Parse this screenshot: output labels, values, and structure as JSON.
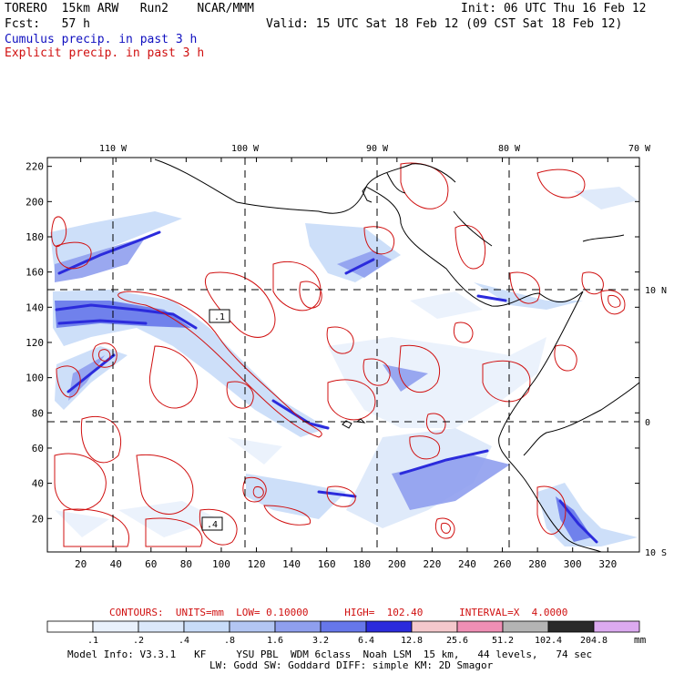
{
  "header": {
    "model": "TORERO  15km ARW   Run2    NCAR/MMM",
    "init": "Init: 06 UTC Thu 16 Feb 12",
    "fcst": "Fcst:   57 h",
    "valid": "Valid: 15 UTC Sat 18 Feb 12 (09 CST Sat 18 Feb 12)",
    "field1": "Cumulus precip. in past 3 h",
    "field2": "Explicit precip. in past 3 h"
  },
  "map": {
    "top_lon_labels": [
      "110 W",
      "100 W",
      "90 W",
      "80 W",
      "70 W"
    ],
    "right_lat_labels": [
      "10 N",
      "0",
      "10 S"
    ],
    "y_ticks": [
      "220",
      "200",
      "180",
      "160",
      "140",
      "120",
      "100",
      "80",
      "60",
      "40",
      "20"
    ],
    "x_ticks": [
      "20",
      "40",
      "60",
      "80",
      "100",
      "120",
      "140",
      "160",
      "180",
      "200",
      "220",
      "240",
      "260",
      "280",
      "300",
      "320"
    ],
    "contour_labels": [
      ".1",
      ".4"
    ]
  },
  "footer": {
    "contours": "CONTOURS:  UNITS=mm  LOW= 0.10000      HIGH=  102.40      INTERVAL=X  4.0000",
    "legend_values": [
      ".1",
      ".2",
      ".4",
      ".8",
      "1.6",
      "3.2",
      "6.4",
      "12.8",
      "25.6",
      "51.2",
      "102.4",
      "204.8"
    ],
    "legend_colors": [
      "#ffffff",
      "#e9f1fc",
      "#dbe8fa",
      "#c8dcf8",
      "#b3c6f3",
      "#8f9fee",
      "#6677ea",
      "#2b2bdc",
      "#f4c8cc",
      "#ef8fb5",
      "#b4b4b4",
      "#2a2a2a",
      "#dcaaf0"
    ],
    "legend_unit": "mm",
    "info1": "Model Info: V3.3.1   KF     YSU PBL  WDM 6class  Noah LSM  15 km,   44 levels,   74 sec",
    "info2": "LW: Godd SW: Goddard DIFF: simple KM: 2D Smagor"
  }
}
